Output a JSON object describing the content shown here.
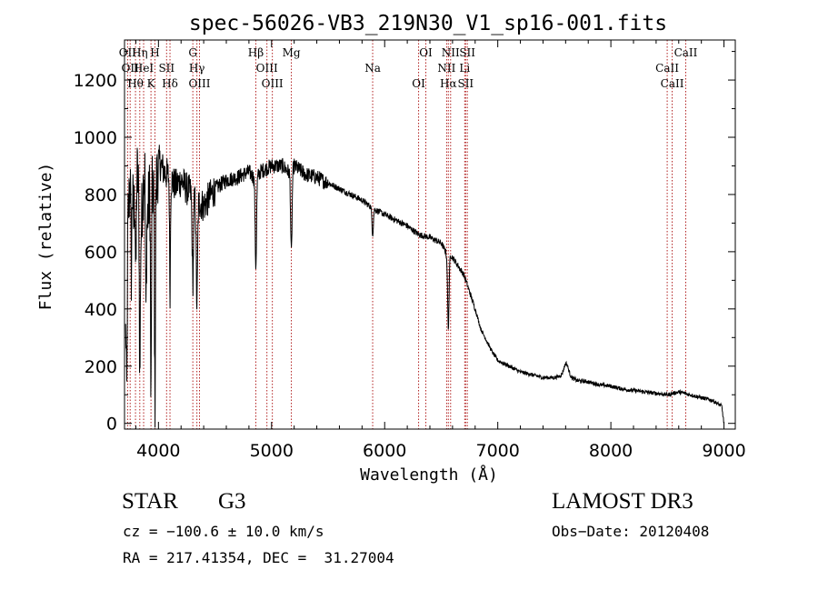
{
  "chart_data": {
    "type": "line",
    "title": "spec-56026-VB3_219N30_V1_sp16-001.fits",
    "xlabel": "Wavelength (Å)",
    "ylabel": "Flux (relative)",
    "xlim": [
      3700,
      9100
    ],
    "ylim": [
      -20,
      1340
    ],
    "xticks": [
      4000,
      5000,
      6000,
      7000,
      8000,
      9000
    ],
    "yticks": [
      0,
      200,
      400,
      600,
      800,
      1000,
      1200
    ],
    "spectrum_outline": {
      "x": [
        3700,
        3720,
        3740,
        3760,
        3780,
        3800,
        3820,
        3840,
        3860,
        3880,
        3900,
        3930,
        3970,
        4000,
        4050,
        4100,
        4150,
        4200,
        4250,
        4300,
        4340,
        4400,
        4500,
        4600,
        4700,
        4800,
        4861,
        4900,
        5000,
        5100,
        5172,
        5200,
        5300,
        5400,
        5500,
        5600,
        5700,
        5800,
        5900,
        6000,
        6100,
        6200,
        6300,
        6400,
        6500,
        6540,
        6563,
        6580,
        6600,
        6650,
        6700,
        6750,
        6800,
        6850,
        6900,
        6950,
        7000,
        7100,
        7200,
        7300,
        7400,
        7500,
        7600,
        7700,
        7800,
        7900,
        8000,
        8100,
        8200,
        8300,
        8400,
        8500,
        8600,
        8700,
        8800,
        8900,
        8980,
        9000
      ],
      "y": [
        40,
        620,
        780,
        950,
        700,
        900,
        850,
        600,
        800,
        900,
        700,
        850,
        780,
        920,
        880,
        860,
        830,
        850,
        820,
        800,
        780,
        760,
        820,
        850,
        860,
        880,
        850,
        880,
        900,
        900,
        870,
        900,
        870,
        860,
        840,
        820,
        800,
        780,
        750,
        730,
        710,
        690,
        660,
        650,
        630,
        600,
        550,
        590,
        580,
        550,
        520,
        460,
        400,
        330,
        290,
        250,
        220,
        200,
        180,
        170,
        160,
        160,
        170,
        150,
        145,
        135,
        130,
        120,
        115,
        110,
        105,
        100,
        110,
        100,
        90,
        80,
        60,
        0
      ]
    },
    "spectral_lines": [
      {
        "wavelength": 3727,
        "labels": [
          "OII"
        ]
      },
      {
        "wavelength": 3750,
        "labels": [
          "OII"
        ]
      },
      {
        "wavelength": 3797,
        "labels": [
          "Hθ"
        ]
      },
      {
        "wavelength": 3835,
        "labels": [
          "Hη"
        ]
      },
      {
        "wavelength": 3869,
        "labels": [
          "HeI"
        ]
      },
      {
        "wavelength": 3934,
        "labels": [
          "K"
        ]
      },
      {
        "wavelength": 3969,
        "labels": [
          "H"
        ]
      },
      {
        "wavelength": 4072,
        "labels": [
          "SII"
        ]
      },
      {
        "wavelength": 4102,
        "labels": [
          "Hδ"
        ]
      },
      {
        "wavelength": 4304,
        "labels": [
          "G"
        ]
      },
      {
        "wavelength": 4340,
        "labels": [
          "Hγ"
        ]
      },
      {
        "wavelength": 4363,
        "labels": [
          "OIII"
        ]
      },
      {
        "wavelength": 4861,
        "labels": [
          "Hβ"
        ]
      },
      {
        "wavelength": 4959,
        "labels": [
          "OIII"
        ]
      },
      {
        "wavelength": 5007,
        "labels": [
          "OIII"
        ]
      },
      {
        "wavelength": 5175,
        "labels": [
          "Mg"
        ]
      },
      {
        "wavelength": 5894,
        "labels": [
          "Na"
        ]
      },
      {
        "wavelength": 6300,
        "labels": [
          "OI"
        ]
      },
      {
        "wavelength": 6364,
        "labels": [
          "OI"
        ]
      },
      {
        "wavelength": 6548,
        "labels": [
          "NII"
        ]
      },
      {
        "wavelength": 6563,
        "labels": [
          "Hα"
        ]
      },
      {
        "wavelength": 6583,
        "labels": [
          "NII"
        ]
      },
      {
        "wavelength": 6708,
        "labels": [
          "Li"
        ]
      },
      {
        "wavelength": 6716,
        "labels": [
          "SII"
        ]
      },
      {
        "wavelength": 6731,
        "labels": [
          "SII"
        ]
      },
      {
        "wavelength": 8498,
        "labels": [
          "CaII"
        ]
      },
      {
        "wavelength": 8542,
        "labels": [
          "CaII"
        ]
      },
      {
        "wavelength": 8662,
        "labels": [
          "CaII"
        ]
      }
    ],
    "line_color": "#b22222"
  },
  "info": {
    "class_label": "STAR",
    "subclass": "G3",
    "survey": "LAMOST DR3",
    "cz": "cz = −100.6 ± 10.0 km/s",
    "obs_date": "Obs−Date: 20120408",
    "radec": "RA = 217.41354, DEC =  31.27004"
  }
}
